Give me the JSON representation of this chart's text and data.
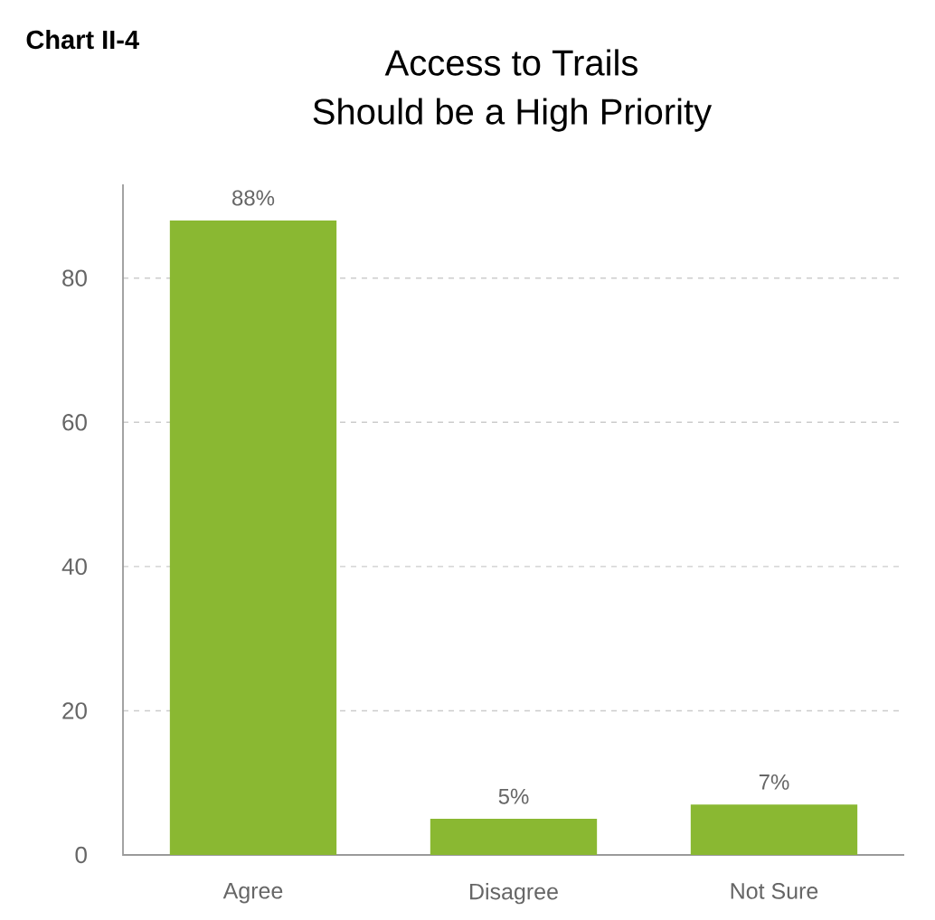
{
  "chart_data": {
    "type": "bar",
    "title": "Access to Trails Should be a High Priority",
    "annotations": [
      "Chart II-4"
    ],
    "categories": [
      "Agree",
      "Disagree",
      "Not Sure"
    ],
    "values": [
      88,
      5,
      7
    ],
    "value_labels": [
      "88%",
      "5%",
      "7%"
    ],
    "color": "#8ab832",
    "ylim": [
      0,
      93
    ],
    "yticks": [
      0,
      20,
      40,
      60,
      80
    ],
    "grid": "y"
  }
}
